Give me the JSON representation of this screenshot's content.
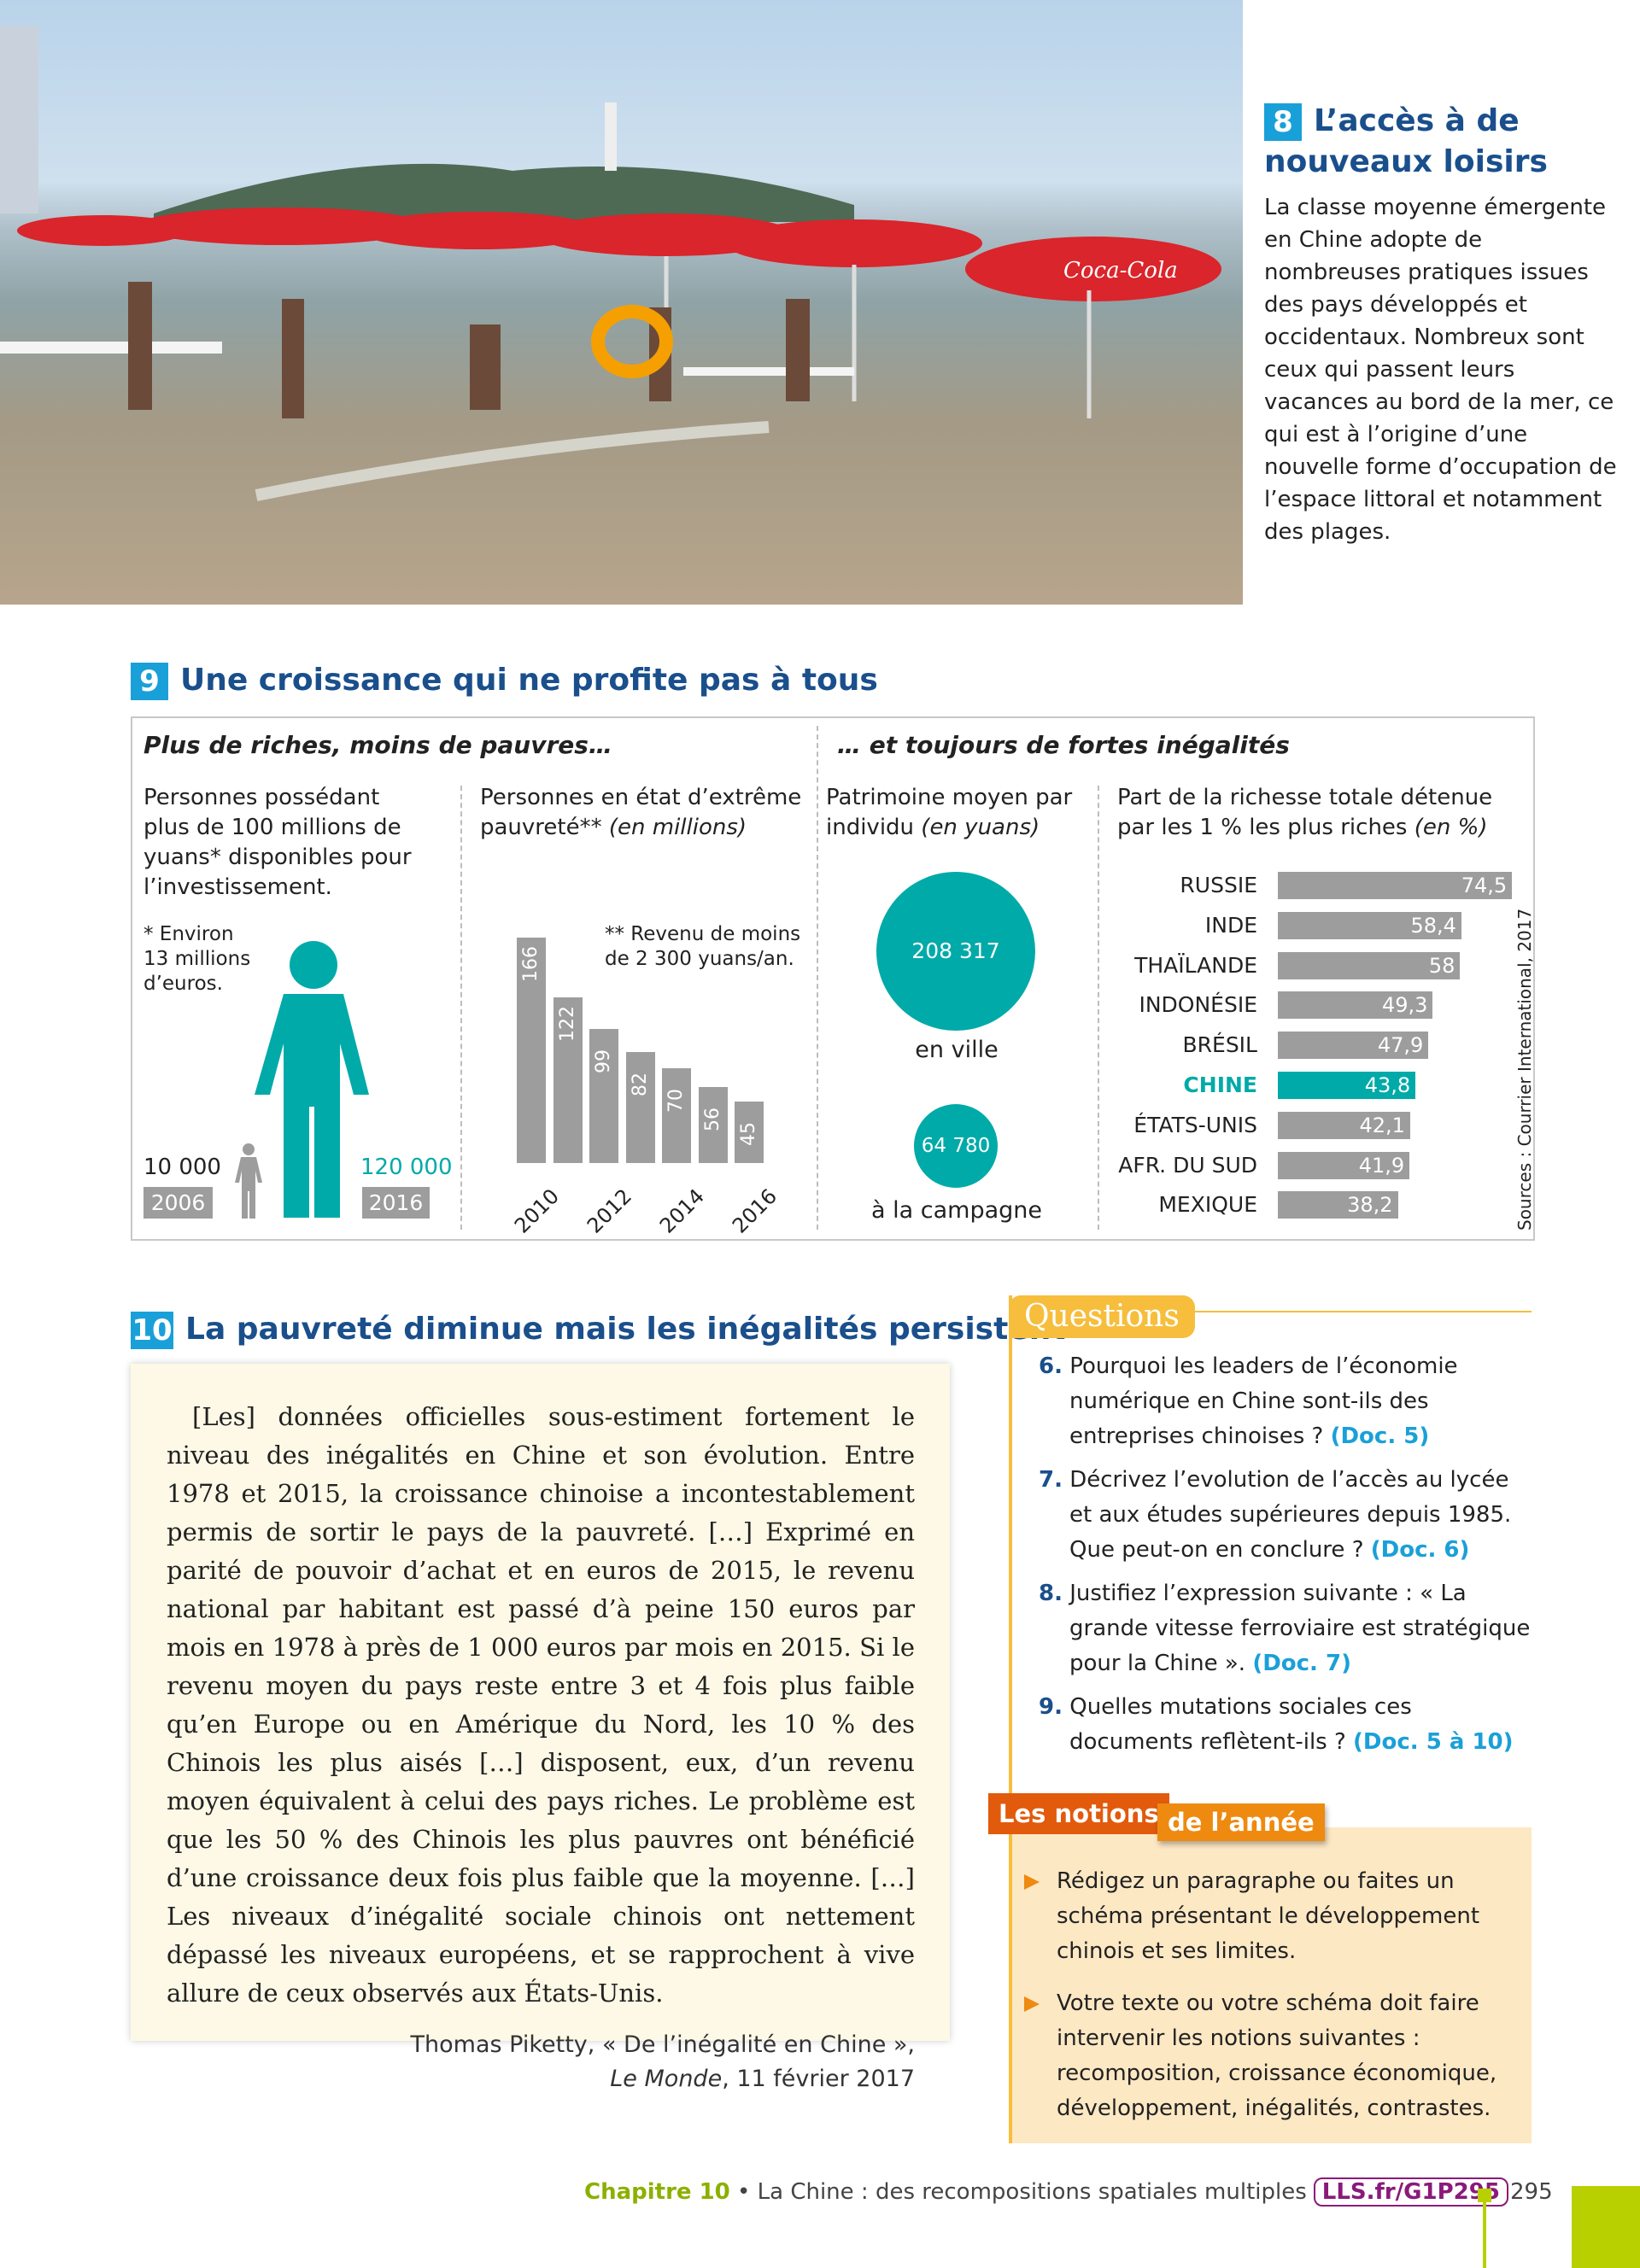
{
  "doc8": {
    "num": "8",
    "title": "L’accès à de nouveaux loisirs",
    "text": "La classe moyenne émergente en Chine adopte de nombreuses pratiques issues des pays développés et occidentaux. Nombreux sont ceux qui passent leurs vacances au bord de la mer, ce qui est à l’origine d’une nouvelle forme d’occupation de l’espace littoral et notamment des plages.",
    "photo_sign": "Coca-Cola"
  },
  "doc9": {
    "num": "9",
    "title": "Une croissance qui ne profite pas à tous",
    "left_heading": "Plus de riches, moins de pauvres…",
    "right_heading": "… et toujours de fortes inégalités",
    "rich": {
      "header": "Personnes possédant plus de 100 millions de yuans* disponibles pour l’investissement.",
      "note": "* Environ 13 millions d’euros.",
      "value_2006": "10 000",
      "year_2006": "2006",
      "value_2016": "120 000",
      "year_2016": "2016"
    },
    "poverty": {
      "header_main": "Personnes en état d’extrême pauvreté**",
      "header_unit": "(en millions)",
      "note": "** Revenu de moins de 2 300 yuans/an."
    },
    "wealth": {
      "header_main": "Patrimoine moyen par individu",
      "header_unit": "(en yuans)",
      "city_value": "208 317",
      "city_label": "en ville",
      "country_value": "64 780",
      "country_label": "à la campagne"
    },
    "share": {
      "header_main": "Part de la richesse totale détenue par les 1 % les plus riches",
      "header_unit": "(en %)"
    },
    "source": "Sources : Courrier International, 2017"
  },
  "chart_data": [
    {
      "type": "bar",
      "title": "Personnes en état d’extrême pauvreté (en millions)",
      "categories": [
        "2010",
        "2011",
        "2012",
        "2013",
        "2014",
        "2015",
        "2016"
      ],
      "values": [
        166,
        122,
        99,
        82,
        70,
        56,
        45
      ],
      "labels": [
        "166",
        "122",
        "99",
        "82",
        "70",
        "56",
        "45"
      ],
      "tick_labels": [
        "2010",
        "2012",
        "2014",
        "2016"
      ],
      "ylim": [
        0,
        170
      ]
    },
    {
      "type": "bar",
      "orientation": "horizontal",
      "title": "Part de la richesse totale détenue par les 1 % les plus riches (en %)",
      "categories": [
        "RUSSIE",
        "INDE",
        "THAÏLANDE",
        "INDONÉSIE",
        "BRÉSIL",
        "CHINE",
        "ÉTATS-UNIS",
        "AFR. DU SUD",
        "MEXIQUE"
      ],
      "values": [
        74.5,
        58.4,
        58,
        49.3,
        47.9,
        43.8,
        42.1,
        41.9,
        38.2
      ],
      "labels": [
        "74,5",
        "58,4",
        "58",
        "49,3",
        "47,9",
        "43,8",
        "42,1",
        "41,9",
        "38,2"
      ],
      "highlight": "CHINE",
      "colors": {
        "default": "#9d9d9d",
        "highlight": "#00aaa8"
      }
    },
    {
      "type": "bubble",
      "title": "Patrimoine moyen par individu (en yuans)",
      "categories": [
        "en ville",
        "à la campagne"
      ],
      "values": [
        208317,
        64780
      ]
    },
    {
      "type": "pictogram",
      "title": "Personnes possédant plus de 100 millions de yuans",
      "categories": [
        "2006",
        "2016"
      ],
      "values": [
        10000,
        120000
      ]
    }
  ],
  "doc10": {
    "num": "10",
    "title": "La pauvreté diminue mais les inégalités persistent",
    "quote": "[Les] données officielles sous-estiment fortement le niveau des inégalités en Chine et son évolution. Entre 1978 et 2015, la croissance chinoise a incontestablement permis de sortir le pays de la pauvreté. […] Exprimé en parité de pouvoir d’achat et en euros de 2015, le revenu national par habitant est passé d’à peine 150 euros par mois en 1978 à près de 1 000 euros par mois en 2015. Si le revenu moyen du pays reste entre 3 et 4 fois plus faible qu’en Europe ou en Amérique du Nord, les 10 % des Chinois les plus aisés […] disposent, eux, d’un revenu moyen équivalent à celui des pays riches. Le problème est que les 50 % des Chinois les plus pauvres ont bénéficié d’une croissance deux fois plus faible que la moyenne. […] Les niveaux d’inégalité sociale chinois ont nettement dépassé les niveaux européens, et se rapprochent à vive allure de ceux observés aux États-Unis.",
    "attribution": "Thomas Piketty, « De l’inégalité en Chine »,",
    "source_title": "Le Monde",
    "source_date": ", 11 février 2017"
  },
  "questions": {
    "tab": "Questions",
    "items": [
      {
        "n": "6.",
        "text": "Pourquoi les leaders de l’économie numérique en Chine sont-ils des entreprises chinoises ?",
        "ref": "(Doc. 5)"
      },
      {
        "n": "7.",
        "text": "Décrivez l’evolution de l’accès au lycée et aux études supérieures depuis 1985. Que peut-on en conclure ?",
        "ref": "(Doc. 6)"
      },
      {
        "n": "8.",
        "text": "Justifiez l’expression suivante : « La grande vitesse ferroviaire est stratégique pour la Chine ».",
        "ref": "(Doc. 7)"
      },
      {
        "n": "9.",
        "text": "Quelles mutations sociales ces documents reflètent-ils ?",
        "ref": "(Doc. 5 à 10)"
      }
    ]
  },
  "notions": {
    "tab1": "Les notions",
    "tab2": "de l’année",
    "items": [
      "Rédigez un paragraphe ou faites un schéma présentant le développement chinois et ses limites.",
      "Votre texte ou votre schéma doit faire intervenir les notions suivantes : recomposition, croissance économique, développement, inégalités, contrastes."
    ]
  },
  "footer": {
    "chapter": "Chapitre 10",
    "title": " • La Chine : des recompositions spatiales multiples",
    "link": "LLS.fr/G1P295",
    "page": "295"
  }
}
